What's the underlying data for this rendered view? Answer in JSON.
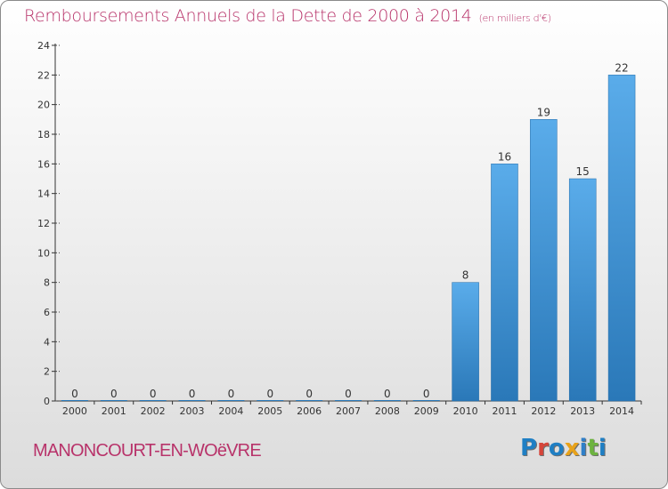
{
  "header": {
    "title": "Remboursements Annuels de la Dette de 2000 à 2014",
    "unit_note": "(en milliers d'€)"
  },
  "footer": {
    "commune": "MANONCOURT-EN-WOëVRE",
    "logo_text": "Proxiti",
    "logo_letter_colors": [
      "#1f7fc4",
      "#d6453a",
      "#1f7fc4",
      "#e8a21a",
      "#2f7fc8",
      "#6db33f",
      "#1f7fc4"
    ]
  },
  "colors": {
    "bar_top": "#5aacea",
    "bar_bottom": "#2a78b8",
    "axis": "#333333",
    "grid": "#444444",
    "text": "#333333",
    "title": "#b8336a"
  },
  "chart_data": {
    "type": "bar",
    "title": "Remboursements Annuels de la Dette de 2000 à 2014",
    "subtitle": "(en milliers d'€)",
    "xlabel": "",
    "ylabel": "",
    "categories": [
      "2000",
      "2001",
      "2002",
      "2003",
      "2004",
      "2005",
      "2006",
      "2007",
      "2008",
      "2009",
      "2010",
      "2011",
      "2012",
      "2013",
      "2014"
    ],
    "values": [
      0,
      0,
      0,
      0,
      0,
      0,
      0,
      0,
      0,
      0,
      8,
      16,
      19,
      15,
      22
    ],
    "ylim": [
      0,
      24
    ],
    "yticks": [
      0,
      2,
      4,
      6,
      8,
      10,
      12,
      14,
      16,
      18,
      20,
      22,
      24
    ],
    "grid": false,
    "data_labels": true
  }
}
